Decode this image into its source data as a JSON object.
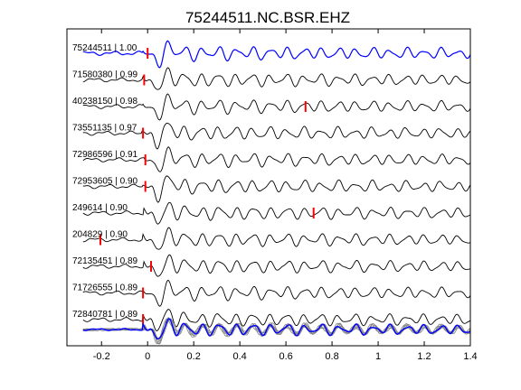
{
  "chart_data": {
    "type": "line",
    "title": "75244511.NC.BSR.EHZ",
    "xlabel": "",
    "ylabel": "",
    "xlim": [
      -0.35,
      1.4
    ],
    "x_ticks": [
      -0.2,
      0,
      0.2,
      0.4,
      0.6,
      0.8,
      1,
      1.2,
      1.4
    ],
    "x_tick_labels": [
      "-0.2",
      "0",
      "0.2",
      "0.4",
      "0.6",
      "0.8",
      "1",
      "1.2",
      "1.4"
    ],
    "grid": false,
    "colors": {
      "reference_trace": "#0000ff",
      "trace": "#000000",
      "pick_marker": "#ff0000",
      "stack_overlay": "#808080"
    },
    "series": [
      {
        "label": "75244511 | 1.00",
        "pick_time": 0.0,
        "is_reference": true
      },
      {
        "label": "71580380 | 0.99",
        "pick_time": -0.015
      },
      {
        "label": "40238150 | 0.98",
        "pick_time": 0.685
      },
      {
        "label": "73551135 | 0.97",
        "pick_time": -0.02
      },
      {
        "label": "72986596 | 0.91",
        "pick_time": -0.01
      },
      {
        "label": "72953605 | 0.90",
        "pick_time": -0.01
      },
      {
        "label": "249614 | 0.90",
        "pick_time": 0.72
      },
      {
        "label": "204829 | 0.90",
        "pick_time": -0.205
      },
      {
        "label": "72135451 | 0.89",
        "pick_time": 0.015
      },
      {
        "label": "71726555 | 0.89",
        "pick_time": -0.02
      },
      {
        "label": "72840781 | 0.89",
        "pick_time": -0.02
      }
    ],
    "stack": {
      "description_visible": false
    }
  }
}
